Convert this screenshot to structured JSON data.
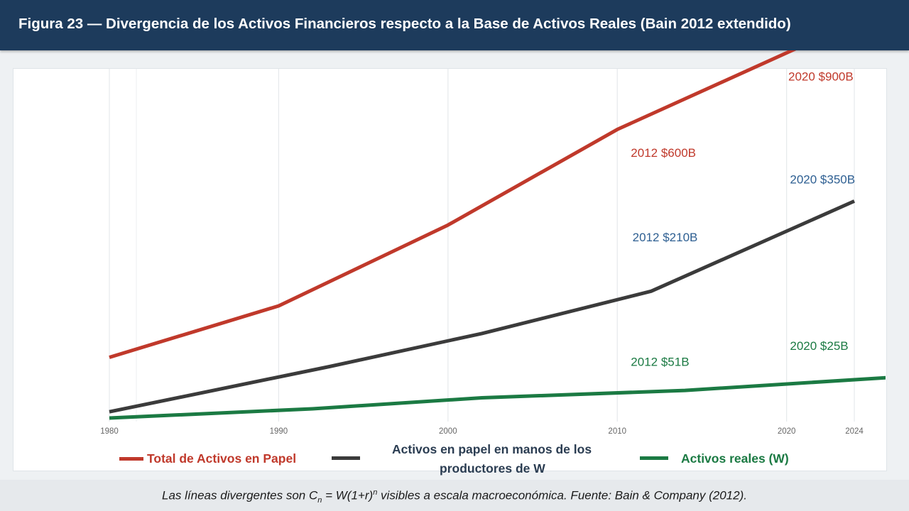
{
  "header": {
    "title": "Figura 23 — Divergencia de los Activos Financieros respecto a la Base de Activos Reales (Bain 2012 extendido)"
  },
  "chart_data": {
    "type": "line",
    "title": "",
    "xlabel": "",
    "ylabel": "",
    "x_ticks": [
      1980,
      1990,
      2000,
      2010,
      2020,
      2024
    ],
    "xlim": [
      1980,
      2024
    ],
    "ylim": [
      0,
      1000
    ],
    "grid": "vertical",
    "legend_position": "bottom",
    "series": [
      {
        "name": "Total de Activos en Papel",
        "color": "#c0392b",
        "x": [
          1980,
          1990,
          2000,
          2010,
          2022
        ],
        "y": [
          165,
          305,
          525,
          785,
          1035
        ]
      },
      {
        "name": "Activos en papel en manos de los productores de W",
        "color": "#3b3b3b",
        "x": [
          1980,
          1993,
          2002,
          2012,
          2024
        ],
        "y": [
          17,
          140,
          230,
          345,
          590
        ]
      },
      {
        "name": "Activos reales (W)",
        "color": "#1b7a43",
        "x": [
          1980,
          1992,
          2002,
          2014,
          2026,
          2029
        ],
        "y": [
          0,
          25,
          55,
          75,
          110,
          128
        ]
      }
    ],
    "annotations": [
      {
        "text": "2020 $900B",
        "color": "#c0392b",
        "x": 2020.1,
        "y": 918
      },
      {
        "text": "2012 $600B",
        "color": "#c0392b",
        "x": 2010.8,
        "y": 710
      },
      {
        "text": "2020 $350B",
        "color": "#2e5f92",
        "x": 2020.2,
        "y": 638
      },
      {
        "text": "2012 $210B",
        "color": "#2e5f92",
        "x": 2010.9,
        "y": 481
      },
      {
        "text": "2020 $25B",
        "color": "#1b7a43",
        "x": 2020.2,
        "y": 185
      },
      {
        "text": "2012 $51B",
        "color": "#1b7a43",
        "x": 2010.8,
        "y": 142
      }
    ]
  },
  "legend": {
    "items": [
      {
        "label": "Total de Activos en Papel",
        "color": "#c0392b"
      },
      {
        "label_line1": "Activos en papel en manos de los",
        "label_line2": "productores de W",
        "color": "#3b3b3b"
      },
      {
        "label": "Activos reales (W)",
        "color": "#1b7a43"
      }
    ]
  },
  "footer": {
    "note_prefix": "Las líneas divergentes son C",
    "note_sub": "n",
    "note_mid": " = W(1+r)",
    "note_sup": "n",
    "note_suffix": " visibles a escala macroeconómica. Fuente: Bain & Company (2012)."
  }
}
